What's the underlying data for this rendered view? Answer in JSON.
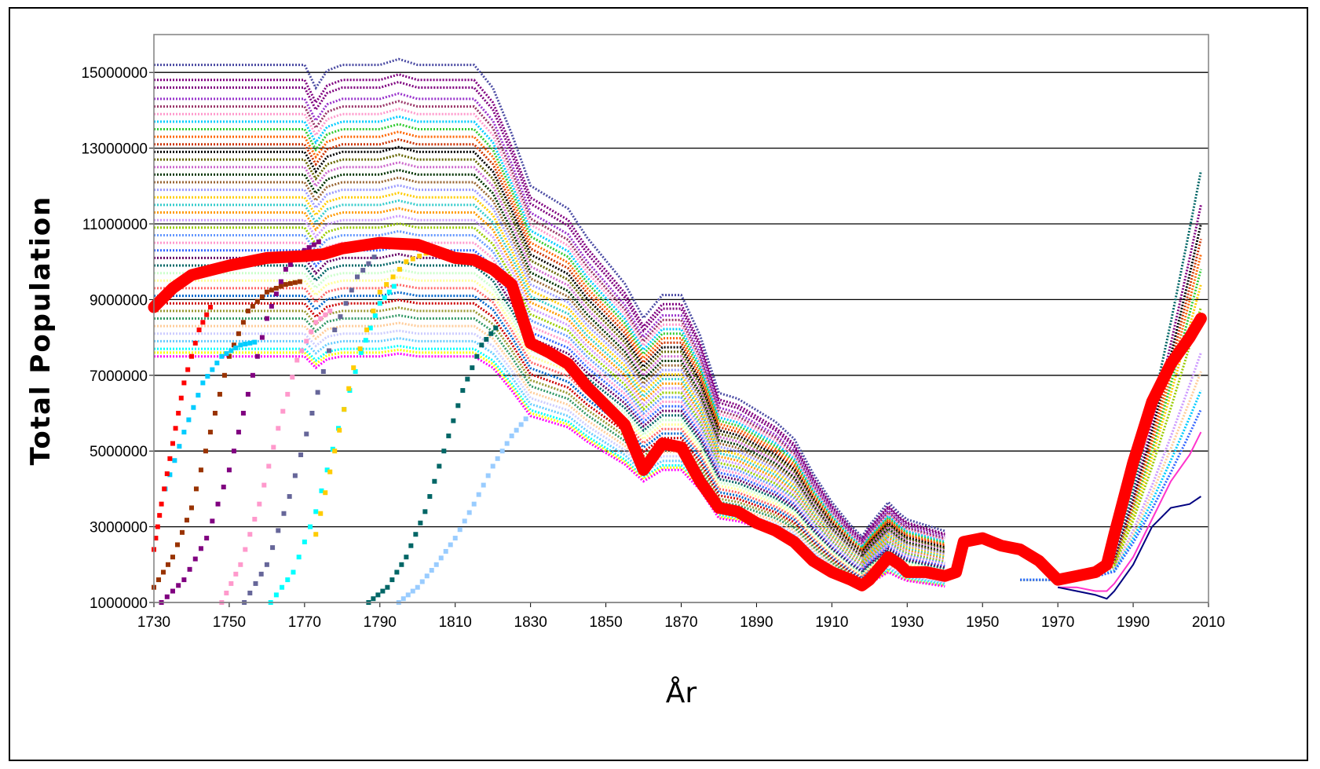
{
  "chart_data": {
    "type": "line",
    "title": "",
    "xlabel": "År",
    "ylabel": "Total Population",
    "xlim": [
      1730,
      2010
    ],
    "ylim": [
      1000000,
      16000000
    ],
    "x_ticks": [
      "1730",
      "1750",
      "1770",
      "1790",
      "1810",
      "1830",
      "1850",
      "1870",
      "1890",
      "1910",
      "1930",
      "1950",
      "1970",
      "1990",
      "2010"
    ],
    "y_ticks": [
      "1000000",
      "3000000",
      "5000000",
      "7000000",
      "9000000",
      "11000000",
      "13000000",
      "15000000"
    ],
    "grid": "horizontal",
    "legend": "none",
    "highlight_color": "#ff0000",
    "highlight_series": {
      "x": [
        1730,
        1735,
        1740,
        1750,
        1760,
        1770,
        1775,
        1780,
        1790,
        1800,
        1810,
        1815,
        1820,
        1825,
        1830,
        1835,
        1840,
        1845,
        1850,
        1855,
        1860,
        1865,
        1870,
        1875,
        1880,
        1885,
        1890,
        1895,
        1900,
        1905,
        1910,
        1915,
        1918,
        1920,
        1925,
        1928,
        1930,
        1935,
        1940,
        1943,
        1945,
        1950,
        1955,
        1960,
        1965,
        1970,
        1975,
        1980,
        1983,
        1985,
        1990,
        1995,
        2000,
        2005,
        2008
      ],
      "y": [
        8800000,
        9300000,
        9650000,
        9900000,
        10100000,
        10150000,
        10200000,
        10350000,
        10500000,
        10450000,
        10100000,
        10050000,
        9800000,
        9400000,
        7850000,
        7600000,
        7300000,
        6700000,
        6200000,
        5700000,
        4500000,
        5200000,
        5100000,
        4200000,
        3500000,
        3400000,
        3100000,
        2900000,
        2600000,
        2100000,
        1800000,
        1600000,
        1450000,
        1600000,
        2200000,
        2000000,
        1800000,
        1800000,
        1700000,
        1800000,
        2600000,
        2700000,
        2500000,
        2400000,
        2100000,
        1600000,
        1700000,
        1800000,
        2000000,
        2800000,
        4700000,
        6300000,
        7300000,
        8000000,
        8500000
      ]
    },
    "tail_series": [
      {
        "color": "#ff33cc",
        "x": [
          1970,
          1975,
          1980,
          1983,
          1985,
          1990,
          1995,
          2000,
          2005,
          2008
        ],
        "y": [
          1400000,
          1400000,
          1300000,
          1300000,
          1500000,
          2200000,
          3200000,
          4200000,
          4900000,
          5500000
        ]
      },
      {
        "color": "#000080",
        "x": [
          1970,
          1975,
          1980,
          1983,
          1985,
          1990,
          1995,
          2000,
          2005,
          2008
        ],
        "y": [
          1400000,
          1300000,
          1200000,
          1100000,
          1300000,
          2000000,
          3000000,
          3500000,
          3600000,
          3800000
        ]
      }
    ],
    "band_series": {
      "base_x": [
        1730,
        1740,
        1750,
        1760,
        1770,
        1773,
        1776,
        1780,
        1790,
        1795,
        1800,
        1810,
        1815,
        1820,
        1825,
        1830,
        1835,
        1840,
        1845,
        1850,
        1855,
        1860,
        1865,
        1870,
        1875,
        1880,
        1885,
        1890,
        1895,
        1900,
        1905,
        1910,
        1915,
        1918,
        1920,
        1925,
        1928,
        1930,
        1935,
        1940
      ],
      "base_y": [
        10000000,
        10000000,
        10000000,
        10000000,
        10000000,
        9600000,
        9900000,
        10000000,
        10000000,
        10100000,
        10000000,
        10000000,
        10000000,
        9600000,
        8800000,
        7900000,
        7700000,
        7500000,
        7000000,
        6600000,
        6200000,
        5600000,
        6000000,
        6000000,
        5300000,
        4300000,
        4200000,
        4000000,
        3800000,
        3500000,
        2900000,
        2400000,
        2000000,
        1800000,
        2000000,
        2400000,
        2200000,
        2100000,
        2000000,
        1900000
      ],
      "ratios": [
        1.52,
        1.48,
        1.46,
        1.43,
        1.41,
        1.39,
        1.37,
        1.35,
        1.33,
        1.31,
        1.29,
        1.27,
        1.25,
        1.23,
        1.21,
        1.19,
        1.17,
        1.15,
        1.13,
        1.11,
        1.09,
        1.07,
        1.05,
        1.03,
        1.01,
        0.99,
        0.97,
        0.95,
        0.93,
        0.91,
        0.89,
        0.87,
        0.85,
        0.83,
        0.81,
        0.79,
        0.77,
        0.76,
        0.75
      ],
      "colors": [
        "#4b4ba3",
        "#800080",
        "#7f007f",
        "#9933cc",
        "#993366",
        "#ff99cc",
        "#00ccff",
        "#33cc33",
        "#ff6600",
        "#cc3300",
        "#000000",
        "#666600",
        "#cc66cc",
        "#003300",
        "#996633",
        "#9999ff",
        "#ffcc00",
        "#33cccc",
        "#ff9900",
        "#cc99ff",
        "#99cc00",
        "#6699ff",
        "#ff99cc",
        "#3366ff",
        "#660066",
        "#006666",
        "#ccffcc",
        "#ffff99",
        "#ff6666",
        "#0066cc",
        "#cc0000",
        "#999933",
        "#339966",
        "#ffcc99",
        "#ccccff",
        "#66ccff",
        "#00ffff",
        "#ffff00",
        "#ff00ff"
      ]
    },
    "modern_series": {
      "x": [
        1960,
        1970,
        1975,
        1980,
        1985,
        1990,
        1995,
        2000,
        2005,
        2008
      ],
      "ratios": [
        1.0,
        1.0,
        1.0,
        1.05,
        1.15,
        1.3,
        1.45,
        1.4,
        1.25,
        1.2
      ],
      "colors": [
        "#006666",
        "#800080",
        "#000000",
        "#cc3300",
        "#ff6600",
        "#33cc33",
        "#ffcc00",
        "#99cc00",
        "#cc99ff",
        "#ffcc99",
        "#00ccff",
        "#3366ff"
      ],
      "final_values": [
        12400000,
        11500000,
        11000000,
        10600000,
        10200000,
        9800000,
        9400000,
        8800000,
        7600000,
        7100000,
        6600000,
        6100000
      ]
    },
    "rising_series": [
      {
        "color": "#993300",
        "x": [
          1730,
          1735,
          1740,
          1745,
          1750,
          1755,
          1760,
          1765,
          1770
        ],
        "y": [
          1400000,
          2200000,
          3500000,
          5500000,
          7500000,
          8700000,
          9200000,
          9400000,
          9500000
        ]
      },
      {
        "color": "#800080",
        "x": [
          1732,
          1738,
          1744,
          1750,
          1755,
          1760,
          1765,
          1770,
          1775
        ],
        "y": [
          1000000,
          1600000,
          2700000,
          4500000,
          6500000,
          8500000,
          9800000,
          10300000,
          10600000
        ]
      },
      {
        "color": "#ff99cc",
        "x": [
          1748,
          1753,
          1758,
          1763,
          1768,
          1773,
          1778
        ],
        "y": [
          1000000,
          2000000,
          3600000,
          5600000,
          7400000,
          8400000,
          8800000
        ]
      },
      {
        "color": "#666699",
        "x": [
          1754,
          1760,
          1766,
          1772,
          1778,
          1784,
          1790
        ],
        "y": [
          1000000,
          2000000,
          3800000,
          6000000,
          8200000,
          9600000,
          10300000
        ]
      },
      {
        "color": "#00ffff",
        "x": [
          1761,
          1767,
          1773,
          1779,
          1785,
          1790,
          1795
        ],
        "y": [
          1000000,
          1800000,
          3400000,
          5600000,
          7600000,
          8900000,
          9500000
        ]
      },
      {
        "color": "#ffcc00",
        "x": [
          1773,
          1778,
          1783,
          1790,
          1797,
          1804
        ],
        "y": [
          2800000,
          5000000,
          7200000,
          9200000,
          10000000,
          10300000
        ]
      },
      {
        "color": "#00ccff",
        "x": [
          1733,
          1738,
          1743,
          1748,
          1753,
          1758
        ],
        "y": [
          4000000,
          5500000,
          6800000,
          7500000,
          7800000,
          7900000
        ]
      },
      {
        "color": "#006666",
        "x": [
          1787,
          1792,
          1797,
          1802,
          1807,
          1812,
          1817,
          1822
        ],
        "y": [
          1000000,
          1400000,
          2200000,
          3400000,
          5000000,
          6600000,
          7800000,
          8400000
        ]
      },
      {
        "color": "#99ccff",
        "x": [
          1795,
          1800,
          1805,
          1810,
          1815,
          1820,
          1825,
          1830
        ],
        "y": [
          1000000,
          1400000,
          2000000,
          2700000,
          3600000,
          4600000,
          5400000,
          6000000
        ]
      },
      {
        "color": "#ff0000",
        "x": [
          1730,
          1732,
          1735,
          1738,
          1742,
          1746
        ],
        "y": [
          2400000,
          3600000,
          5200000,
          6800000,
          8200000,
          9000000
        ]
      }
    ]
  }
}
